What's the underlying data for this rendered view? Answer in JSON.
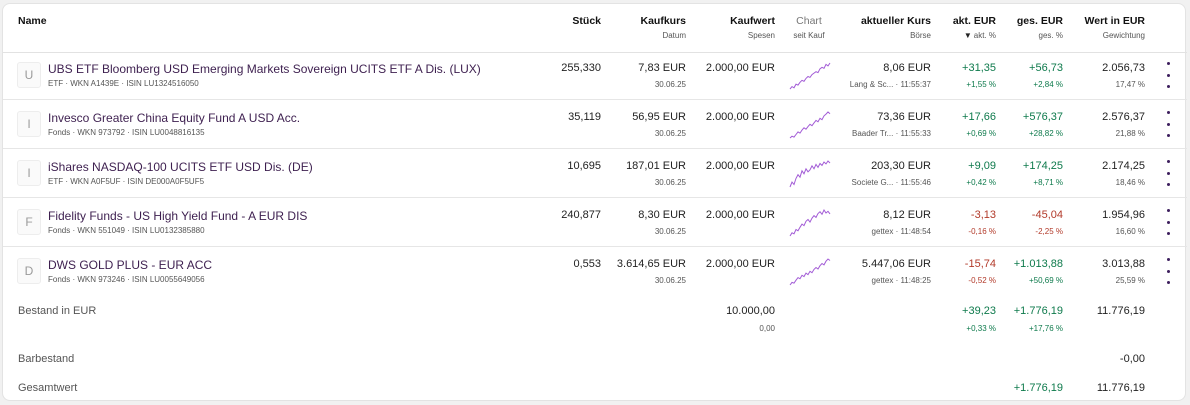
{
  "headers": {
    "name": "Name",
    "stueck": "Stück",
    "kaufkurs": "Kaufkurs",
    "kaufkurs_sub": "Datum",
    "kaufwert": "Kaufwert",
    "kaufwert_sub": "Spesen",
    "chart": "Chart",
    "chart_sub": "seit Kauf",
    "kurs": "aktueller Kurs",
    "kurs_sub": "Börse",
    "akt": "akt. EUR",
    "akt_sub": "akt. %",
    "ges": "ges. EUR",
    "ges_sub": "ges. %",
    "wert": "Wert in EUR",
    "wert_sub": "Gewichtung"
  },
  "rows": [
    {
      "letter": "U",
      "name": "UBS ETF Bloomberg USD Emerging Markets Sovereign UCITS ETF A Dis. (LUX)",
      "sub": "ETF · WKN A1439E · ISIN LU1324516050",
      "stueck": "255,330",
      "kaufkurs": "7,83 EUR",
      "datum": "30.06.25",
      "kaufwert": "2.000,00 EUR",
      "kurs": "8,06 EUR",
      "boerse": "Lang & Sc... · 11:55:37",
      "akt_eur": "+31,35",
      "akt_pct": "+1,55 %",
      "ges_eur": "+56,73",
      "ges_pct": "+2,84 %",
      "wert": "2.056,73",
      "gewichtung": "17,47 %",
      "spark": [
        2,
        3,
        2.5,
        4,
        3.6,
        4.8,
        5.6,
        5.2,
        6.4,
        7.2,
        6.8,
        8,
        8.6,
        9.2,
        8.8,
        10.4,
        11,
        10.6,
        12.2,
        11.6,
        12.8
      ]
    },
    {
      "letter": "I",
      "name": "Invesco Greater China Equity Fund A USD Acc.",
      "sub": "Fonds · WKN 973792 · ISIN LU0048816135",
      "stueck": "35,119",
      "kaufkurs": "56,95 EUR",
      "datum": "30.06.25",
      "kaufwert": "2.000,00 EUR",
      "kurs": "73,36 EUR",
      "boerse": "Baader Tr... · 11:55:33",
      "akt_eur": "+17,66",
      "akt_pct": "+0,69 %",
      "ges_eur": "+576,37",
      "ges_pct": "+28,82 %",
      "wert": "2.576,37",
      "gewichtung": "21,88 %",
      "spark": [
        1,
        2,
        1.5,
        3,
        4.5,
        3.8,
        5.5,
        6.8,
        6,
        7.5,
        8.8,
        8,
        9.6,
        11,
        10.2,
        12.2,
        11.4,
        13.6,
        14.6,
        15.8,
        14.8
      ]
    },
    {
      "letter": "I",
      "name": "iShares NASDAQ-100 UCITS ETF USD Dis. (DE)",
      "sub": "ETF · WKN A0F5UF · ISIN DE000A0F5UF5",
      "stueck": "10,695",
      "kaufkurs": "187,01 EUR",
      "datum": "30.06.25",
      "kaufwert": "2.000,00 EUR",
      "kurs": "203,30 EUR",
      "boerse": "Societe G... · 11:55:46",
      "akt_eur": "+9,09",
      "akt_pct": "+0,42 %",
      "ges_eur": "+174,25",
      "ges_pct": "+8,71 %",
      "wert": "2.174,25",
      "gewichtung": "18,46 %",
      "spark": [
        3,
        5,
        4,
        6.5,
        8,
        7,
        9.6,
        8.4,
        10.4,
        9.2,
        10,
        11.6,
        10.4,
        12.2,
        11,
        12.6,
        11.8,
        13.2,
        12.4,
        13.6,
        12.8
      ]
    },
    {
      "letter": "F",
      "name": "Fidelity Funds - US High Yield Fund - A EUR DIS",
      "sub": "Fonds · WKN 551049 · ISIN LU0132385880",
      "stueck": "240,877",
      "kaufkurs": "8,30 EUR",
      "datum": "30.06.25",
      "kaufwert": "2.000,00 EUR",
      "kurs": "8,12 EUR",
      "boerse": "gettex · 11:48:54",
      "akt_eur": "-3,13",
      "akt_pct": "-0,16 %",
      "ges_eur": "-45,04",
      "ges_pct": "-2,25 %",
      "wert": "1.954,96",
      "gewichtung": "16,60 %",
      "spark": [
        2,
        3.5,
        3,
        5,
        4.4,
        6,
        7.5,
        6.8,
        8.8,
        9.6,
        8.4,
        10.2,
        11.4,
        10.6,
        12.4,
        13.2,
        12,
        14,
        12.6,
        13.4,
        12.2
      ]
    },
    {
      "letter": "D",
      "name": "DWS GOLD PLUS - EUR ACC",
      "sub": "Fonds · WKN 973246 · ISIN LU0055649056",
      "stueck": "0,553",
      "kaufkurs": "3.614,65 EUR",
      "datum": "30.06.25",
      "kaufwert": "2.000,00 EUR",
      "kurs": "5.447,06 EUR",
      "boerse": "gettex · 11:48:25",
      "akt_eur": "-15,74",
      "akt_pct": "-0,52 %",
      "ges_eur": "+1.013,88",
      "ges_pct": "+50,69 %",
      "wert": "3.013,88",
      "gewichtung": "25,59 %",
      "spark": [
        1,
        2.4,
        2,
        3.6,
        5,
        4.4,
        6.2,
        5.6,
        7.4,
        6.6,
        8.4,
        7.6,
        9.4,
        10.4,
        9.6,
        11.4,
        12.6,
        11.8,
        13.8,
        15,
        14.2
      ]
    }
  ],
  "bestand": {
    "label": "Bestand in EUR",
    "kaufwert": "10.000,00",
    "spesen": "0,00",
    "akt_eur": "+39,23",
    "akt_pct": "+0,33 %",
    "ges_eur": "+1.776,19",
    "ges_pct": "+17,76 %",
    "wert": "11.776,19"
  },
  "barbestand": {
    "label": "Barbestand",
    "wert": "-0,00"
  },
  "gesamtwert": {
    "label": "Gesamtwert",
    "ges_eur": "+1.776,19",
    "wert": "11.776,19"
  },
  "colors": {
    "positive": "#0e7a4c",
    "negative": "#b23a2a",
    "name": "#3d1f4f",
    "spark": "#a25bd6",
    "kebab": "#3d1f5e"
  }
}
